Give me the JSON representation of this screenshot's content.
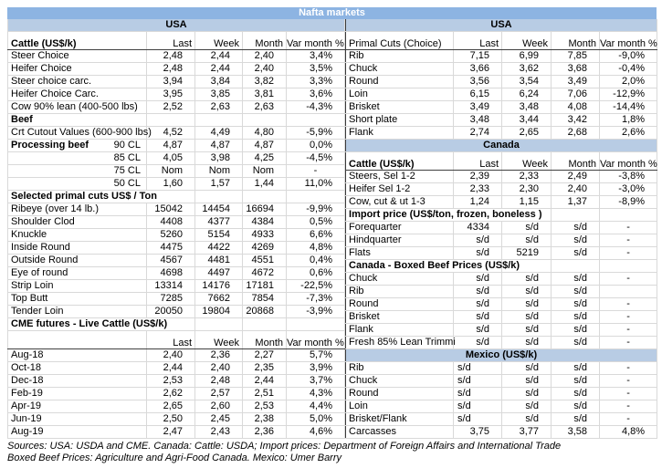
{
  "title": "Nafta markets",
  "colors": {
    "title_bg": "#8db4e2",
    "title_text": "#ffffff",
    "band_bg": "#b8cce4",
    "grid": "#d9d9d9",
    "header_border": "#404040"
  },
  "sources": {
    "line1": "Sources: USA: USDA and CME. Canada: Cattle: USDA; Import prices: Department of Foreign Affairs and International Trade",
    "line2": "Boxed Beef Prices: Agriculture and Agri-Food Canada. Mexico: Umer Barry"
  },
  "left_table": {
    "rows": [
      {
        "t": "band",
        "label": "USA"
      },
      {
        "t": "header",
        "label": "Cattle (US$/k)",
        "v": [
          "Last",
          "Week",
          "Month",
          "Var month %"
        ]
      },
      {
        "t": "data",
        "label": "Steer Choice",
        "v": [
          "2,48",
          "2,44",
          "2,40",
          "3,4%"
        ]
      },
      {
        "t": "data",
        "label": "Heifer Choice",
        "v": [
          "2,48",
          "2,44",
          "2,40",
          "3,5%"
        ]
      },
      {
        "t": "data",
        "label": "Steer choice carc.",
        "v": [
          "3,94",
          "3,84",
          "3,82",
          "3,3%"
        ]
      },
      {
        "t": "data",
        "label": "Heifer Choice Carc.",
        "v": [
          "3,95",
          "3,85",
          "3,81",
          "3,6%"
        ]
      },
      {
        "t": "data",
        "label": "Cow 90% lean (400-500 lbs)",
        "v": [
          "2,52",
          "2,63",
          "2,63",
          "-4,3%"
        ]
      },
      {
        "t": "section",
        "span": 1,
        "label": "Beef"
      },
      {
        "t": "data",
        "label": "Crt Cutout Values (600-900 lbs)",
        "v": [
          "4,52",
          "4,49",
          "4,80",
          "-5,9%"
        ]
      },
      {
        "t": "split",
        "label": "Processing beef",
        "label2": "90 CL",
        "v": [
          "4,87",
          "4,87",
          "4,87",
          "0,0%"
        ]
      },
      {
        "t": "sub",
        "label": "85 CL",
        "v": [
          "4,05",
          "3,98",
          "4,25",
          "-4,5%"
        ]
      },
      {
        "t": "sub",
        "label": "75 CL",
        "v": [
          "Nom",
          "Nom",
          "Nom",
          "-"
        ]
      },
      {
        "t": "sub",
        "label": "50 CL",
        "v": [
          "1,60",
          "1,57",
          "1,44",
          "11,0%"
        ]
      },
      {
        "t": "section",
        "span": 2,
        "label": "Selected primal cuts US$ / Ton"
      },
      {
        "t": "data",
        "label": "Ribeye (over 14 lb.)",
        "v": [
          "15042",
          "14454",
          "16694",
          "-9,9%"
        ]
      },
      {
        "t": "data",
        "label": "Shoulder Clod",
        "v": [
          "4408",
          "4377",
          "4384",
          "0,5%"
        ]
      },
      {
        "t": "data",
        "label": "Knuckle",
        "v": [
          "5260",
          "5154",
          "4933",
          "6,6%"
        ]
      },
      {
        "t": "data",
        "label": "Inside Round",
        "v": [
          "4475",
          "4422",
          "4269",
          "4,8%"
        ]
      },
      {
        "t": "data",
        "label": "Outside Round",
        "v": [
          "4567",
          "4481",
          "4551",
          "0,4%"
        ]
      },
      {
        "t": "data",
        "label": "Eye of round",
        "v": [
          "4698",
          "4497",
          "4672",
          "0,6%"
        ]
      },
      {
        "t": "data",
        "label": "Strip Loin",
        "v": [
          "13314",
          "14176",
          "17181",
          "-22,5%"
        ]
      },
      {
        "t": "data",
        "label": "Top Butt",
        "v": [
          "7285",
          "7662",
          "7854",
          "-7,3%"
        ]
      },
      {
        "t": "data",
        "label": "Tender Loin",
        "v": [
          "20050",
          "19804",
          "20868",
          "-3,9%"
        ]
      },
      {
        "t": "section",
        "span": 2,
        "label": "CME futures - Live Cattle (US$/k)"
      },
      {
        "t": "header",
        "label": "",
        "v": [
          "Last",
          "Week",
          "Month",
          "Var month %"
        ]
      },
      {
        "t": "data",
        "label": "Aug-18",
        "v": [
          "2,40",
          "2,36",
          "2,27",
          "5,7%"
        ]
      },
      {
        "t": "data",
        "label": "Oct-18",
        "v": [
          "2,44",
          "2,40",
          "2,35",
          "3,9%"
        ]
      },
      {
        "t": "data",
        "label": "Dec-18",
        "v": [
          "2,53",
          "2,48",
          "2,44",
          "3,7%"
        ]
      },
      {
        "t": "data",
        "label": "Feb-19",
        "v": [
          "2,62",
          "2,57",
          "2,51",
          "4,3%"
        ]
      },
      {
        "t": "data",
        "label": "Apr-19",
        "v": [
          "2,65",
          "2,60",
          "2,53",
          "4,4%"
        ]
      },
      {
        "t": "data",
        "label": "Jun-19",
        "v": [
          "2,50",
          "2,45",
          "2,38",
          "5,0%"
        ]
      },
      {
        "t": "data",
        "label": "Aug-19",
        "v": [
          "2,47",
          "2,43",
          "2,36",
          "4,6%"
        ]
      }
    ]
  },
  "right_table": {
    "rows": [
      {
        "t": "band",
        "label": "USA"
      },
      {
        "t": "header",
        "plain": true,
        "label": "Primal Cuts (Choice)",
        "v": [
          "Last",
          "Week",
          "Month",
          "Var month %"
        ]
      },
      {
        "t": "data",
        "label": "Rib",
        "v": [
          "7,15",
          "6,99",
          "7,85",
          "-9,0%"
        ]
      },
      {
        "t": "data",
        "label": "Chuck",
        "v": [
          "3,66",
          "3,62",
          "3,68",
          "-0,4%"
        ]
      },
      {
        "t": "data",
        "label": "Round",
        "v": [
          "3,56",
          "3,54",
          "3,49",
          "2,0%"
        ]
      },
      {
        "t": "data",
        "label": "Loin",
        "v": [
          "6,15",
          "6,24",
          "7,06",
          "-12,9%"
        ]
      },
      {
        "t": "data",
        "label": "Brisket",
        "v": [
          "3,49",
          "3,48",
          "4,08",
          "-14,4%"
        ]
      },
      {
        "t": "data",
        "label": "Short plate",
        "v": [
          "3,48",
          "3,44",
          "3,42",
          "1,8%"
        ]
      },
      {
        "t": "data",
        "label": "Flank",
        "v": [
          "2,74",
          "2,65",
          "2,68",
          "2,6%"
        ]
      },
      {
        "t": "band",
        "label": "Canada"
      },
      {
        "t": "header",
        "label": "Cattle (US$/k)",
        "v": [
          "Last",
          "Week",
          "Month",
          "Var month %"
        ]
      },
      {
        "t": "data",
        "label": "Steers, Sel 1-2",
        "v": [
          "2,39",
          "2,33",
          "2,49",
          "-3,8%"
        ]
      },
      {
        "t": "data",
        "label": "Heifer Sel 1-2",
        "v": [
          "2,33",
          "2,30",
          "2,40",
          "-3,0%"
        ]
      },
      {
        "t": "data",
        "label": "Cow, cut & ut 1-3",
        "v": [
          "1,24",
          "1,15",
          "1,37",
          "-8,9%"
        ]
      },
      {
        "t": "section",
        "span": 3,
        "label": "Import price (US$/ton, frozen, boneless )"
      },
      {
        "t": "data",
        "label": "Forequarter",
        "v": [
          "4334",
          "s/d",
          "s/d",
          "-"
        ]
      },
      {
        "t": "data",
        "label": "Hindquarter",
        "v": [
          "s/d",
          "s/d",
          "s/d",
          "-"
        ]
      },
      {
        "t": "data",
        "label": "Flats",
        "v": [
          "s/d",
          "5219",
          "s/d",
          "-"
        ]
      },
      {
        "t": "section",
        "span": 2,
        "label": "Canada - Boxed Beef Prices (US$/k)"
      },
      {
        "t": "data",
        "label": "Chuck",
        "v": [
          "s/d",
          "s/d",
          "s/d",
          "-"
        ]
      },
      {
        "t": "data",
        "label": "Rib",
        "v": [
          "s/d",
          "s/d",
          "s/d",
          ""
        ]
      },
      {
        "t": "data",
        "label": "Round",
        "v": [
          "s/d",
          "s/d",
          "s/d",
          "-"
        ]
      },
      {
        "t": "data",
        "label": "Brisket",
        "v": [
          "s/d",
          "s/d",
          "s/d",
          "-"
        ]
      },
      {
        "t": "data",
        "label": "Flank",
        "v": [
          "s/d",
          "s/d",
          "s/d",
          "-"
        ]
      },
      {
        "t": "data",
        "label": "Fresh 85% Lean Trimmi",
        "v": [
          "s/d",
          "s/d",
          "s/d",
          "-"
        ]
      },
      {
        "t": "band",
        "label": "Mexico (US$/k)"
      },
      {
        "t": "data",
        "leftFirst": true,
        "label": "Rib",
        "v": [
          "s/d",
          "s/d",
          "s/d",
          "-"
        ]
      },
      {
        "t": "data",
        "leftFirst": true,
        "label": "Chuck",
        "v": [
          "s/d",
          "s/d",
          "s/d",
          "-"
        ]
      },
      {
        "t": "data",
        "leftFirst": true,
        "label": "Round",
        "v": [
          "s/d",
          "s/d",
          "s/d",
          "-"
        ]
      },
      {
        "t": "data",
        "leftFirst": true,
        "label": "Loin",
        "v": [
          "s/d",
          "s/d",
          "s/d",
          "-"
        ]
      },
      {
        "t": "data",
        "leftFirst": true,
        "label": "Brisket/Flank",
        "v": [
          "s/d",
          "s/d",
          "s/d",
          "-"
        ]
      },
      {
        "t": "data",
        "label": "Carcasses",
        "v": [
          "3,75",
          "3,77",
          "3,58",
          "4,8%"
        ]
      }
    ]
  }
}
